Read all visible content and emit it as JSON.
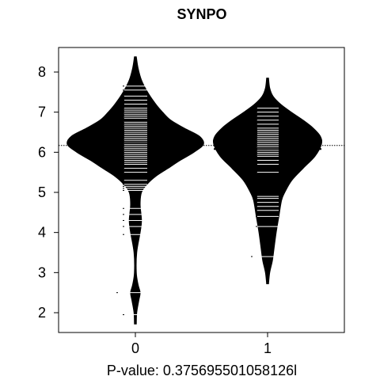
{
  "chart_data": {
    "type": "beanplot",
    "title": "SYNPO",
    "xlabel": "P-value: 0.375695501058126l",
    "ylabel": "",
    "categories": [
      "0",
      "1"
    ],
    "yticks": [
      2,
      3,
      4,
      5,
      6,
      7,
      8
    ],
    "ylim": [
      1.5,
      8.6
    ],
    "overall_mean": 6.17,
    "series": [
      {
        "category": "0",
        "mean": 6.23,
        "density": [
          [
            1.72,
            0.0
          ],
          [
            2.0,
            0.02
          ],
          [
            2.3,
            0.05
          ],
          [
            2.5,
            0.07
          ],
          [
            2.7,
            0.04
          ],
          [
            3.0,
            0.01
          ],
          [
            3.5,
            0.02
          ],
          [
            4.0,
            0.07
          ],
          [
            4.3,
            0.09
          ],
          [
            4.7,
            0.07
          ],
          [
            5.0,
            0.09
          ],
          [
            5.2,
            0.17
          ],
          [
            5.4,
            0.3
          ],
          [
            5.6,
            0.48
          ],
          [
            5.8,
            0.66
          ],
          [
            6.0,
            0.86
          ],
          [
            6.2,
            1.0
          ],
          [
            6.4,
            0.94
          ],
          [
            6.6,
            0.72
          ],
          [
            6.8,
            0.52
          ],
          [
            7.0,
            0.4
          ],
          [
            7.2,
            0.3
          ],
          [
            7.5,
            0.18
          ],
          [
            7.8,
            0.09
          ],
          [
            8.1,
            0.04
          ],
          [
            8.38,
            0.0
          ]
        ],
        "points": [
          1.95,
          2.5,
          3.95,
          4.15,
          4.3,
          4.45,
          4.6,
          5.05,
          5.1,
          5.15,
          5.2,
          5.3,
          5.5,
          5.6,
          5.7,
          5.75,
          5.8,
          5.85,
          5.9,
          5.95,
          6.0,
          6.05,
          6.1,
          6.15,
          6.2,
          6.25,
          6.3,
          6.35,
          6.4,
          6.45,
          6.5,
          6.55,
          6.6,
          6.65,
          6.7,
          6.75,
          6.85,
          6.9,
          6.95,
          7.0,
          7.05,
          7.1,
          7.2,
          7.3,
          7.4,
          7.55,
          7.65
        ],
        "long_points": [
          2.5,
          6.88,
          7.62
        ]
      },
      {
        "category": "1",
        "mean": 6.08,
        "density": [
          [
            2.72,
            0.0
          ],
          [
            3.0,
            0.04
          ],
          [
            3.3,
            0.09
          ],
          [
            3.6,
            0.12
          ],
          [
            4.0,
            0.16
          ],
          [
            4.4,
            0.21
          ],
          [
            4.8,
            0.26
          ],
          [
            5.0,
            0.32
          ],
          [
            5.3,
            0.45
          ],
          [
            5.6,
            0.66
          ],
          [
            5.9,
            0.88
          ],
          [
            6.2,
            1.0
          ],
          [
            6.4,
            0.98
          ],
          [
            6.6,
            0.85
          ],
          [
            6.8,
            0.66
          ],
          [
            7.0,
            0.44
          ],
          [
            7.2,
            0.24
          ],
          [
            7.4,
            0.1
          ],
          [
            7.6,
            0.04
          ],
          [
            7.85,
            0.0
          ]
        ],
        "points": [
          3.4,
          4.15,
          4.4,
          4.55,
          4.65,
          4.75,
          4.85,
          4.9,
          5.5,
          5.7,
          5.8,
          5.9,
          5.95,
          6.0,
          6.05,
          6.1,
          6.15,
          6.2,
          6.25,
          6.3,
          6.35,
          6.4,
          6.45,
          6.5,
          6.55,
          6.6,
          6.7,
          6.8,
          6.9,
          7.0,
          7.1
        ],
        "long_points": [
          3.4
        ]
      }
    ]
  }
}
